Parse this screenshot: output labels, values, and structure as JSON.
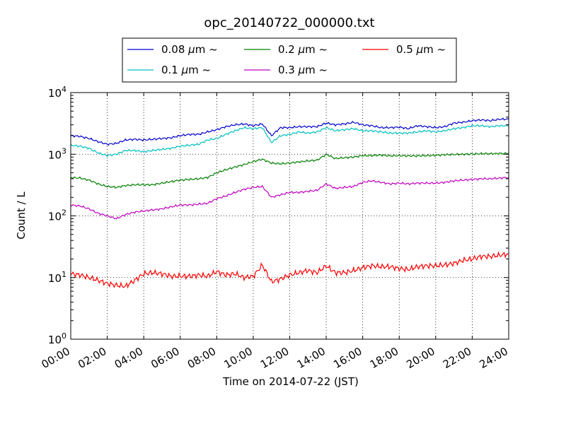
{
  "chart_data": {
    "type": "line",
    "title": "opc_20140722_000000.txt",
    "xlabel": "Time on 2014-07-22 (JST)",
    "ylabel": "Count / L",
    "y_scale": "log",
    "xlim_hours": [
      0,
      24
    ],
    "ylim": [
      1,
      10000
    ],
    "grid": true,
    "legend_placement": "top-center, above plot",
    "x_ticks": [
      "00:00",
      "02:00",
      "04:00",
      "06:00",
      "08:00",
      "10:00",
      "12:00",
      "14:00",
      "16:00",
      "18:00",
      "20:00",
      "22:00",
      "24:00"
    ],
    "y_ticks": [
      {
        "base": "10",
        "exp": "0",
        "value": 1
      },
      {
        "base": "10",
        "exp": "1",
        "value": 10
      },
      {
        "base": "10",
        "exp": "2",
        "value": 100
      },
      {
        "base": "10",
        "exp": "3",
        "value": 1000
      },
      {
        "base": "10",
        "exp": "4",
        "value": 10000
      }
    ],
    "x_hours": [
      0,
      0.5,
      1,
      1.5,
      2,
      2.5,
      3,
      3.5,
      4,
      4.5,
      5,
      5.5,
      6,
      6.5,
      7,
      7.5,
      8,
      8.5,
      9,
      9.5,
      10,
      10.5,
      11,
      11.5,
      12,
      12.5,
      13,
      13.5,
      14,
      14.5,
      15,
      15.5,
      16,
      16.5,
      17,
      17.5,
      18,
      18.5,
      19,
      19.5,
      20,
      20.5,
      21,
      21.5,
      22,
      22.5,
      23,
      23.5,
      24
    ],
    "series": [
      {
        "name_prefix": "0.08",
        "name_suffix": "~",
        "color": "#0000cc",
        "values": [
          2000,
          1950,
          1800,
          1600,
          1450,
          1500,
          1700,
          1750,
          1700,
          1750,
          1800,
          1850,
          2000,
          2100,
          2100,
          2300,
          2500,
          2800,
          3000,
          3100,
          2900,
          3100,
          2000,
          2700,
          2700,
          2800,
          2800,
          2800,
          3200,
          3000,
          3100,
          3300,
          3000,
          2900,
          2700,
          2700,
          2750,
          2600,
          2900,
          2800,
          2700,
          2800,
          3200,
          3300,
          3500,
          3600,
          3500,
          3700,
          3700
        ]
      },
      {
        "name_prefix": "0.1",
        "name_suffix": "~",
        "color": "#00bfbf",
        "values": [
          1400,
          1350,
          1250,
          1050,
          950,
          1000,
          1150,
          1150,
          1100,
          1150,
          1200,
          1250,
          1350,
          1400,
          1450,
          1700,
          1800,
          2100,
          2400,
          2700,
          2600,
          2700,
          1550,
          2000,
          2100,
          2300,
          2200,
          2300,
          2700,
          2400,
          2500,
          2600,
          2400,
          2400,
          2300,
          2200,
          2200,
          2200,
          2300,
          2400,
          2300,
          2400,
          2600,
          2700,
          2900,
          2900,
          2800,
          2900,
          2900
        ]
      },
      {
        "name_prefix": "0.2",
        "name_suffix": "~",
        "color": "#007f00",
        "values": [
          420,
          410,
          380,
          330,
          300,
          290,
          310,
          320,
          320,
          320,
          340,
          360,
          380,
          390,
          400,
          420,
          500,
          560,
          620,
          680,
          760,
          830,
          720,
          700,
          720,
          750,
          780,
          800,
          1000,
          850,
          880,
          900,
          950,
          950,
          970,
          940,
          950,
          940,
          940,
          950,
          960,
          980,
          990,
          1000,
          1010,
          1020,
          1020,
          1030,
          1030
        ]
      },
      {
        "name_prefix": "0.3",
        "name_suffix": "~",
        "color": "#bf00bf",
        "values": [
          150,
          145,
          130,
          110,
          100,
          90,
          105,
          115,
          120,
          125,
          130,
          140,
          150,
          150,
          155,
          160,
          190,
          210,
          240,
          270,
          290,
          300,
          200,
          220,
          240,
          240,
          250,
          260,
          330,
          280,
          290,
          300,
          350,
          370,
          350,
          330,
          340,
          330,
          340,
          340,
          340,
          350,
          370,
          380,
          390,
          400,
          400,
          410,
          420
        ]
      },
      {
        "name_prefix": "0.5",
        "name_suffix": "~",
        "color": "#ff0000",
        "values": [
          11.5,
          11,
          10,
          9,
          8,
          7.5,
          7.2,
          9,
          11.5,
          12,
          11.5,
          10.5,
          10.5,
          10.5,
          11,
          10.5,
          12.5,
          11,
          11.5,
          10,
          10.5,
          16,
          8.5,
          9.5,
          11,
          12,
          13,
          12,
          15.5,
          12,
          12,
          13,
          14.5,
          15.5,
          15,
          15,
          14,
          13.5,
          15,
          15.5,
          15.5,
          16,
          17,
          19,
          20,
          22,
          22,
          23,
          24
        ]
      }
    ]
  }
}
